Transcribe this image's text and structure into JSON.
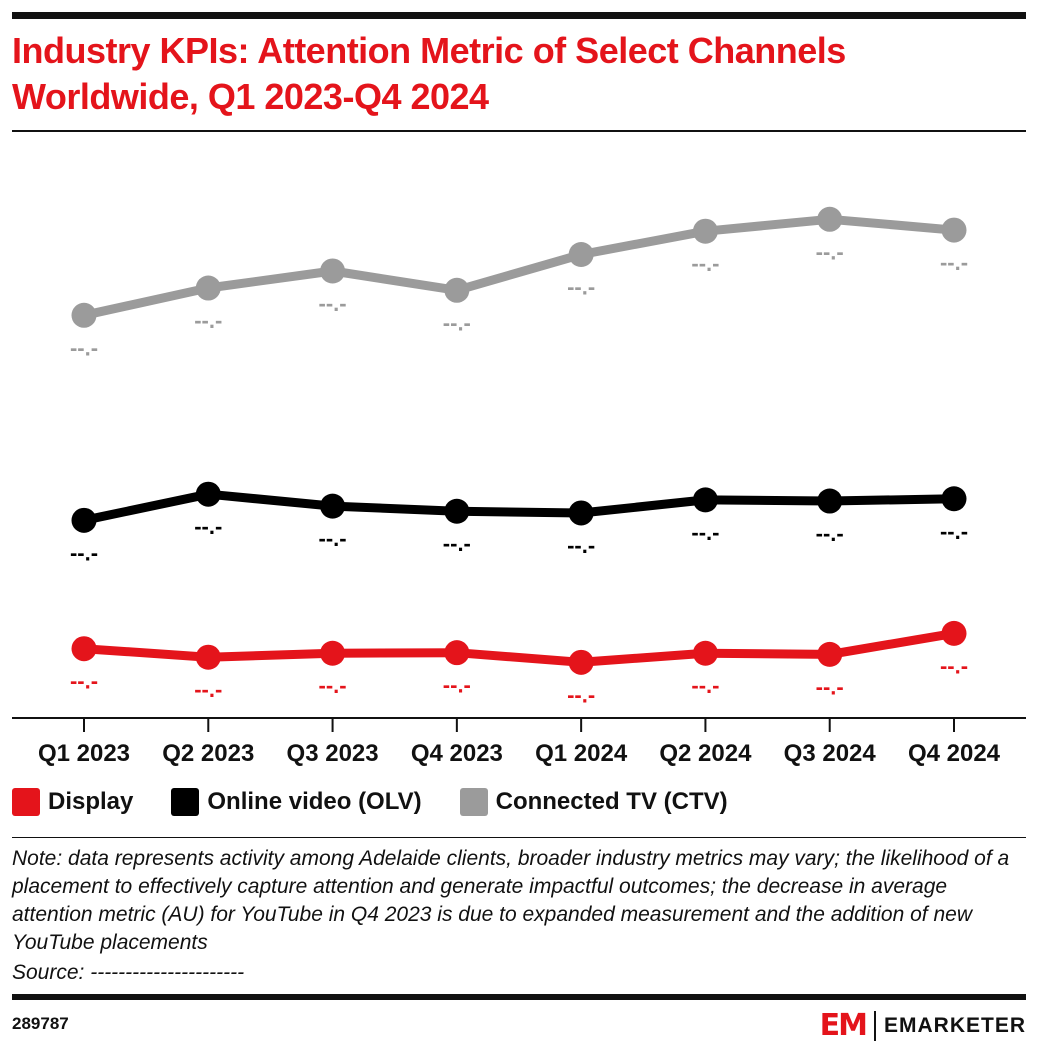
{
  "header": {
    "title": "Industry KPIs: Attention Metric of Select Channels Worldwide, Q1 2023-Q4 2024"
  },
  "colors": {
    "accent": "#e4141b",
    "display": "#e4141b",
    "olv": "#000000",
    "ctv": "#9b9b9b",
    "axis": "#111111"
  },
  "chart_data": {
    "type": "line",
    "title": "Industry KPIs: Attention Metric of Select Channels Worldwide, Q1 2023-Q4 2024",
    "xlabel": "",
    "ylabel": "",
    "y_axis_visible": false,
    "grid": false,
    "legend_position": "bottom-left",
    "ylim": [
      0,
      100
    ],
    "categories": [
      "Q1 2023",
      "Q2 2023",
      "Q3 2023",
      "Q4 2023",
      "Q1 2024",
      "Q2 2024",
      "Q3 2024",
      "Q4 2024"
    ],
    "series": [
      {
        "name": "Display",
        "color": "#e4141b",
        "values": [
          12.2,
          10.7,
          11.4,
          11.5,
          9.8,
          11.4,
          11.2,
          14.9
        ],
        "labels": [
          "--.-",
          "--.-",
          "--.-",
          "--.-",
          "--.-",
          "--.-",
          "--.-",
          "--.-"
        ],
        "label_side": [
          "below",
          "below",
          "below",
          "below",
          "below",
          "below",
          "below",
          "below"
        ]
      },
      {
        "name": "Online video (OLV)",
        "color": "#000000",
        "values": [
          34.8,
          39.4,
          37.3,
          36.4,
          36.1,
          38.4,
          38.2,
          38.6
        ],
        "labels": [
          "--.-",
          "--.-",
          "--.-",
          "--.-",
          "--.-",
          "--.-",
          "--.-",
          "--.-"
        ],
        "label_side": [
          "below",
          "below",
          "below",
          "below",
          "below",
          "below",
          "below",
          "below"
        ]
      },
      {
        "name": "Connected TV (CTV)",
        "color": "#9b9b9b",
        "values": [
          70.9,
          75.7,
          78.7,
          75.3,
          81.6,
          85.7,
          87.8,
          85.9
        ],
        "labels": [
          "--.-",
          "--.-",
          "--.-",
          "--.-",
          "--.-",
          "--.-",
          "--.-",
          "--.-"
        ],
        "label_side": [
          "below",
          "below",
          "below",
          "below",
          "below",
          "below",
          "below",
          "below"
        ]
      }
    ]
  },
  "legend": {
    "items": [
      {
        "label": "Display",
        "color": "#e4141b"
      },
      {
        "label": "Online video (OLV)",
        "color": "#000000"
      },
      {
        "label": "Connected TV (CTV)",
        "color": "#9b9b9b"
      }
    ]
  },
  "footer": {
    "note": "Note: data represents activity among Adelaide clients, broader industry metrics may vary; the likelihood of a placement to effectively capture attention and generate impactful outcomes; the decrease in average attention metric (AU) for YouTube in Q4 2023 is due to expanded measurement and the addition of new YouTube placements",
    "source": "Source: ----------------------",
    "chart_id": "289787",
    "brand_mark": "EM",
    "brand_name": "EMARKETER"
  }
}
